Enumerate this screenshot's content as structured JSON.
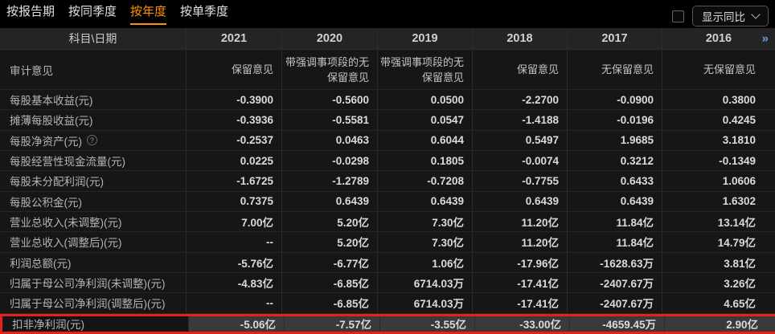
{
  "tab_bar": {
    "tabs": [
      {
        "label": "按报告期",
        "active": false
      },
      {
        "label": "按同季度",
        "active": false
      },
      {
        "label": "按年度",
        "active": true
      },
      {
        "label": "按单季度",
        "active": false
      }
    ],
    "compare_checkbox_checked": false,
    "compare_dropdown_label": "显示同比",
    "chevron_icon": "chevron-down",
    "active_tab_color": "#ff9100"
  },
  "table": {
    "corner_header": "科目\\日期",
    "years": [
      "2021",
      "2020",
      "2019",
      "2018",
      "2017",
      "2016"
    ],
    "more_icon": "»",
    "more_icon_color": "#6fa0d8",
    "highlight_border_color": "#e3231a",
    "rows": [
      {
        "label": "审计意见",
        "wrap": true,
        "values": [
          "保留意见",
          "带强调事项段的无保留意见",
          "带强调事项段的无保留意见",
          "保留意见",
          "无保留意见",
          "无保留意见"
        ]
      },
      {
        "label": "每股基本收益(元)",
        "values": [
          "-0.3900",
          "-0.5600",
          "0.0500",
          "-2.2700",
          "-0.0900",
          "0.3800"
        ]
      },
      {
        "label": "摊薄每股收益(元)",
        "values": [
          "-0.3936",
          "-0.5581",
          "0.0547",
          "-1.4188",
          "-0.0196",
          "0.4245"
        ]
      },
      {
        "label": "每股净资产(元)",
        "help": true,
        "values": [
          "-0.2537",
          "0.0463",
          "0.6044",
          "0.5497",
          "1.9685",
          "3.1810"
        ]
      },
      {
        "label": "每股经营性现金流量(元)",
        "values": [
          "0.0225",
          "-0.0298",
          "0.1805",
          "-0.0074",
          "0.3212",
          "-0.1349"
        ]
      },
      {
        "label": "每股未分配利润(元)",
        "values": [
          "-1.6725",
          "-1.2789",
          "-0.7208",
          "-0.7755",
          "0.6433",
          "1.0606"
        ]
      },
      {
        "label": "每股公积金(元)",
        "values": [
          "0.7375",
          "0.6439",
          "0.6439",
          "0.6439",
          "0.6439",
          "1.6302"
        ]
      },
      {
        "label": "营业总收入(未调整)(元)",
        "values": [
          "7.00亿",
          "5.20亿",
          "7.30亿",
          "11.20亿",
          "11.84亿",
          "13.14亿"
        ]
      },
      {
        "label": "营业总收入(调整后)(元)",
        "values": [
          "--",
          "5.20亿",
          "7.30亿",
          "11.20亿",
          "11.84亿",
          "14.79亿"
        ]
      },
      {
        "label": "利润总额(元)",
        "values": [
          "-5.76亿",
          "-6.77亿",
          "1.06亿",
          "-17.96亿",
          "-1628.63万",
          "3.81亿"
        ]
      },
      {
        "label": "归属于母公司净利润(未调整)(元)",
        "values": [
          "-4.83亿",
          "-6.85亿",
          "6714.03万",
          "-17.41亿",
          "-2407.67万",
          "3.26亿"
        ]
      },
      {
        "label": "归属于母公司净利润(调整后)(元)",
        "values": [
          "--",
          "-6.85亿",
          "6714.03万",
          "-17.41亿",
          "-2407.67万",
          "4.65亿"
        ]
      },
      {
        "label": "扣非净利润(元)",
        "highlight": true,
        "values": [
          "-5.06亿",
          "-7.57亿",
          "-3.55亿",
          "-33.00亿",
          "-4659.45万",
          "2.90亿"
        ]
      }
    ]
  }
}
